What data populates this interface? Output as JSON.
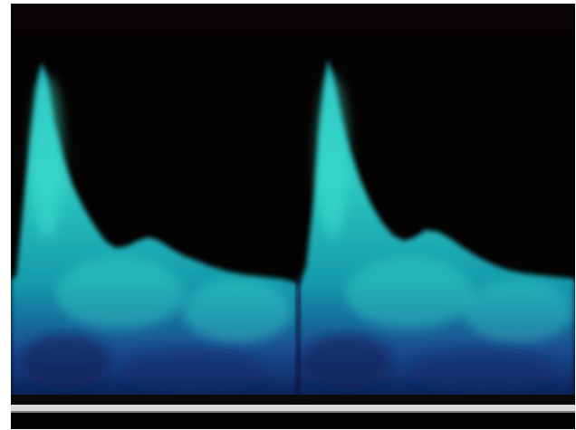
{
  "image": {
    "kind": "spectral doppler waveform",
    "background_color": "#050302",
    "frame_color": "#ffffff",
    "colors": {
      "signal_bright": "#3fe8d2",
      "signal_mid": "#19a7b4",
      "signal_deep": "#1b4f9a",
      "signal_dark": "#0b1f55",
      "baseline": "#d9d9d9"
    },
    "cardiac_cycles": 2
  }
}
